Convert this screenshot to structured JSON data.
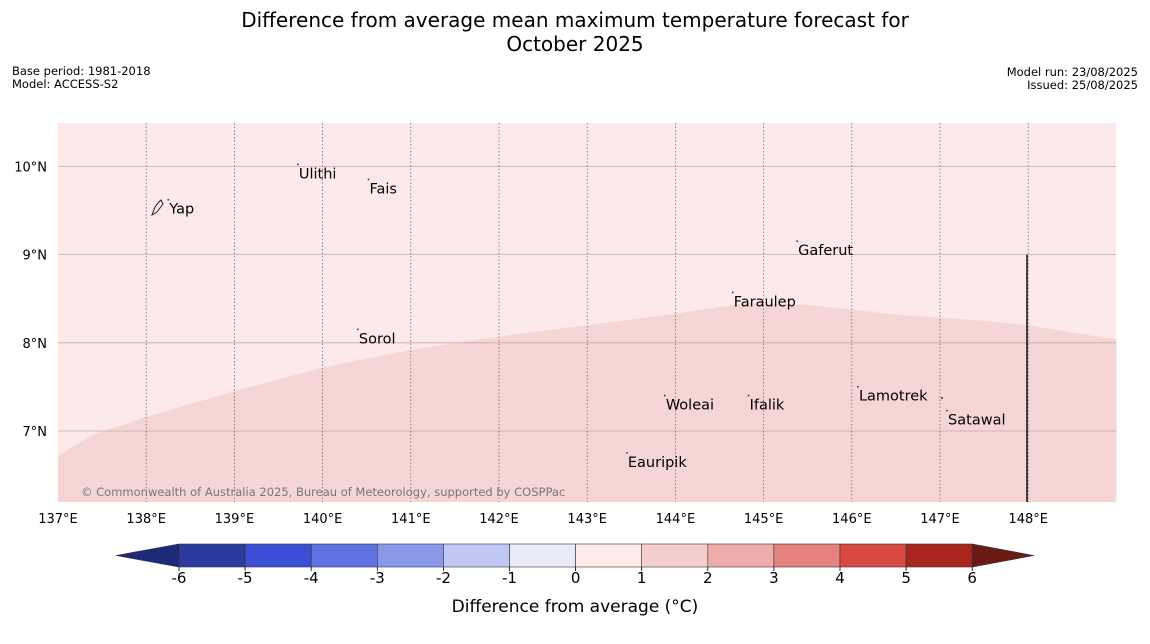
{
  "title": {
    "line1": "Difference from average mean maximum temperature forecast for",
    "line2": "October 2025"
  },
  "meta_left": {
    "base_period": "Base period: 1981-2018",
    "model": "Model: ACCESS-S2"
  },
  "meta_right": {
    "model_run": "Model run: 23/08/2025",
    "issued": "Issued: 25/08/2025"
  },
  "map": {
    "lon_range": [
      137.0,
      149.0
    ],
    "lat_range": [
      6.2,
      10.5
    ],
    "lon_ticks": [
      "137°E",
      "138°E",
      "139°E",
      "140°E",
      "141°E",
      "142°E",
      "143°E",
      "144°E",
      "145°E",
      "146°E",
      "147°E",
      "148°E"
    ],
    "lat_ticks": [
      "7°N",
      "8°N",
      "9°N",
      "10°N"
    ],
    "regions": [
      {
        "name": "0 to 1",
        "color": "#fbeae9"
      },
      {
        "name": "1 to 2",
        "color": "#f5d6d5"
      }
    ],
    "places": [
      {
        "name": "Yap",
        "lon": 138.25,
        "lat": 9.52
      },
      {
        "name": "Ulithi",
        "lon": 139.72,
        "lat": 9.92
      },
      {
        "name": "Fais",
        "lon": 140.52,
        "lat": 9.75
      },
      {
        "name": "Gaferut",
        "lon": 145.38,
        "lat": 9.05
      },
      {
        "name": "Faraulep",
        "lon": 144.65,
        "lat": 8.47
      },
      {
        "name": "Sorol",
        "lon": 140.4,
        "lat": 8.05
      },
      {
        "name": "Lamotrek",
        "lon": 146.07,
        "lat": 7.4
      },
      {
        "name": "Woleai",
        "lon": 143.88,
        "lat": 7.3
      },
      {
        "name": "Ifalik",
        "lon": 144.83,
        "lat": 7.3
      },
      {
        "name": "Satawal",
        "lon": 147.08,
        "lat": 7.13
      },
      {
        "name": "Eauripik",
        "lon": 143.45,
        "lat": 6.65
      }
    ],
    "copyright": "© Commonwealth of Australia 2025, Bureau of Meteorology, supported by COSPPac"
  },
  "colorbar": {
    "label": "Difference from average (°C)",
    "ticks": [
      "-6",
      "-5",
      "-4",
      "-3",
      "-2",
      "-1",
      "0",
      "1",
      "2",
      "3",
      "4",
      "5",
      "6"
    ],
    "colors": [
      "#2c3a9e",
      "#3a4fd4",
      "#5f72e4",
      "#8a98ec",
      "#c2c8f5",
      "#e9ebfb",
      "#fdeceb",
      "#f4cfcd",
      "#eeadaa",
      "#e7837e",
      "#d94a42",
      "#a8261f"
    ],
    "under_color": "#1e2a78",
    "over_color": "#6b1914"
  }
}
